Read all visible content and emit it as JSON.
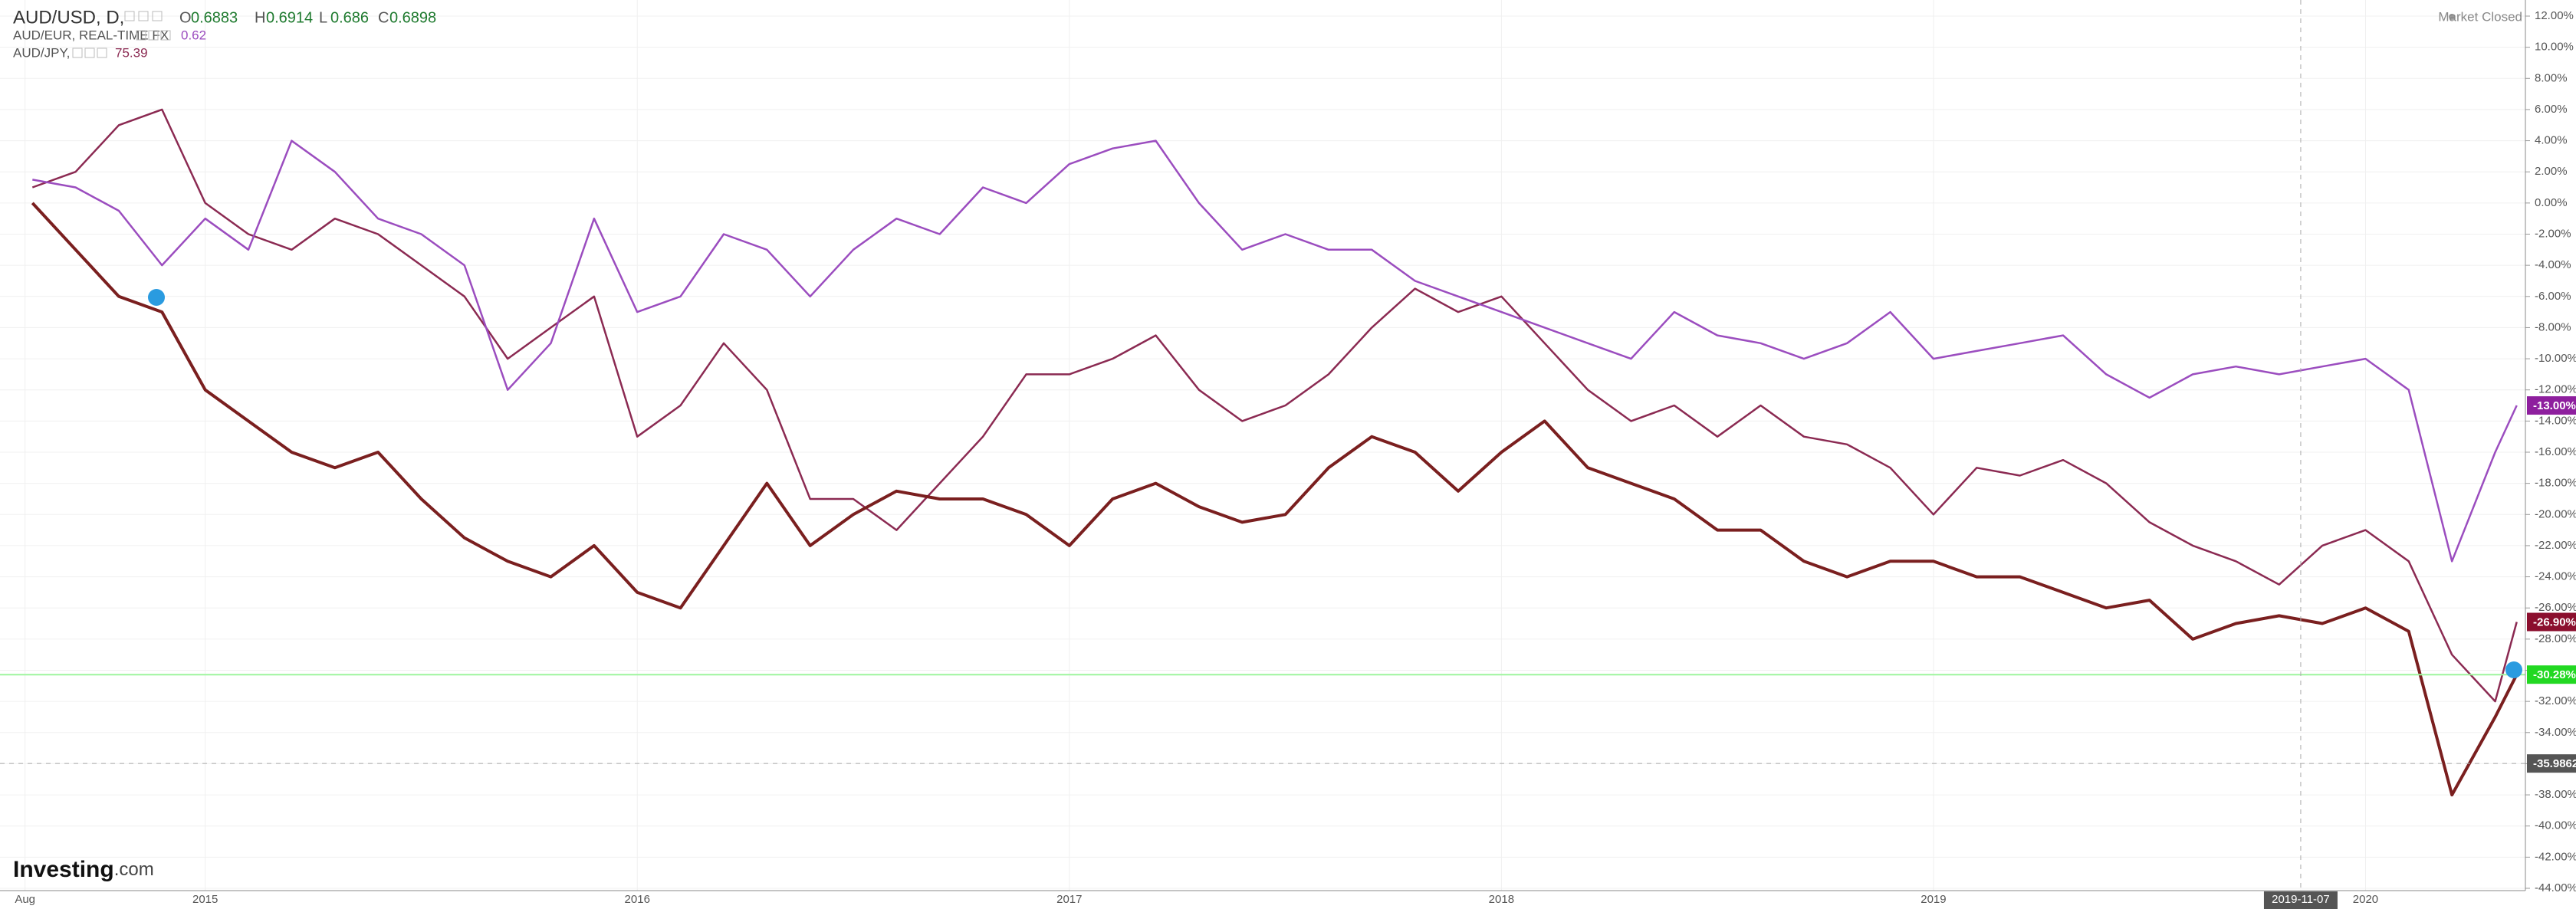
{
  "chart_data": {
    "type": "line",
    "x": [
      2014.6,
      2014.7,
      2014.8,
      2014.9,
      2015,
      2015.1,
      2015.2,
      2015.3,
      2015.4,
      2015.5,
      2015.6,
      2015.7,
      2015.8,
      2015.9,
      2016,
      2016.1,
      2016.2,
      2016.3,
      2016.4,
      2016.5,
      2016.6,
      2016.7,
      2016.8,
      2016.9,
      2017,
      2017.1,
      2017.2,
      2017.3,
      2017.4,
      2017.5,
      2017.6,
      2017.7,
      2017.8,
      2017.9,
      2018,
      2018.1,
      2018.2,
      2018.3,
      2018.4,
      2018.5,
      2018.6,
      2018.7,
      2018.8,
      2018.9,
      2019,
      2019.1,
      2019.2,
      2019.3,
      2019.4,
      2019.5,
      2019.6,
      2019.7,
      2019.8,
      2019.9,
      2020,
      2020.1,
      2020.2,
      2020.3,
      2020.35
    ],
    "series": [
      {
        "name": "AUD/USD, D,",
        "color": "#7a1f1f",
        "ohlc": [
          {
            "label": "O",
            "value": 0.6883
          },
          {
            "label": "H",
            "value": 0.6914
          },
          {
            "label": "L",
            "value": 0.686
          },
          {
            "label": "C",
            "value": 0.6898
          }
        ],
        "last_label": "-30.28%",
        "last_color": "#22d822",
        "values": [
          0,
          -3,
          -6,
          -7,
          -12,
          -14,
          -16,
          -17,
          -16,
          -19,
          -21.5,
          -23,
          -24,
          -22,
          -25,
          -26,
          -22,
          -18,
          -22,
          -20,
          -18.5,
          -19,
          -19,
          -20,
          -22,
          -19,
          -18,
          -19.5,
          -20.5,
          -20,
          -17,
          -15,
          -16,
          -18.5,
          -16,
          -14,
          -17,
          -18,
          -19,
          -21,
          -21,
          -23,
          -24,
          -23,
          -23,
          -24,
          -24,
          -25,
          -26,
          -25.5,
          -28,
          -27,
          -26.5,
          -27,
          -26,
          -27.5,
          -38,
          -33,
          -30.28
        ]
      },
      {
        "name": "AUD/EUR, REAL-TIME FX",
        "color": "#9b4dbf",
        "quote": 0.62,
        "last_label": "-13.00%",
        "last_color": "#8e1f9e",
        "values": [
          1.5,
          1,
          -0.5,
          -4,
          -1,
          -3,
          4,
          2,
          -1,
          -2,
          -4,
          -12,
          -9,
          -1,
          -7,
          -6,
          -2,
          -3,
          -6,
          -3,
          -1,
          -2,
          1,
          0,
          2.5,
          3.5,
          4,
          0,
          -3,
          -2,
          -3,
          -3,
          -5,
          -6,
          -7,
          -8,
          -9,
          -10,
          -7,
          -8.5,
          -9,
          -10,
          -9,
          -7,
          -10,
          -9.5,
          -9,
          -8.5,
          -11,
          -12.5,
          -11,
          -10.5,
          -11,
          -10.5,
          -10,
          -12,
          -23,
          -16,
          -13
        ]
      },
      {
        "name": "AUD/JPY,",
        "color": "#8b2a52",
        "quote": 75.39,
        "last_label": "-26.90%",
        "last_color": "#8b0f2e",
        "values": [
          1,
          2,
          5,
          6,
          0,
          -2,
          -3,
          -1,
          -2,
          -4,
          -6,
          -10,
          -8,
          -6,
          -15,
          -13,
          -9,
          -12,
          -19,
          -19,
          -21,
          -18,
          -15,
          -11,
          -11,
          -10,
          -8.5,
          -12,
          -14,
          -13,
          -11,
          -8,
          -5.5,
          -7,
          -6,
          -9,
          -12,
          -14,
          -13,
          -15,
          -13,
          -15,
          -15.5,
          -17,
          -20,
          -17,
          -17.5,
          -16.5,
          -18,
          -20.5,
          -22,
          -23,
          -24.5,
          -22,
          -21,
          -23,
          -29,
          -32,
          -26.9
        ]
      }
    ],
    "xlim": [
      2014.525,
      2020.37
    ],
    "xticks": [
      {
        "value": 2014.583,
        "label": "Aug"
      },
      2015,
      2016,
      2017,
      2018,
      2019,
      2020
    ],
    "ylim": [
      -44,
      12
    ],
    "yticks": [
      {
        "value": 12,
        "label": "12.00%"
      },
      {
        "value": 10,
        "label": "10.00%"
      },
      {
        "value": 8,
        "label": "8.00%"
      },
      {
        "value": 6,
        "label": "6.00%"
      },
      {
        "value": 4,
        "label": "4.00%"
      },
      {
        "value": 2,
        "label": "2.00%"
      },
      {
        "value": 0,
        "label": "0.00%"
      },
      {
        "value": -2,
        "label": "-2.00%"
      },
      {
        "value": -4,
        "label": "-4.00%"
      },
      {
        "value": -6,
        "label": "-6.00%"
      },
      {
        "value": -8,
        "label": "-8.00%"
      },
      {
        "value": -10,
        "label": "-10.00%"
      },
      {
        "value": -12,
        "label": "-12.00%"
      },
      {
        "value": -14,
        "label": "-14.00%"
      },
      {
        "value": -16,
        "label": "-16.00%"
      },
      {
        "value": -18,
        "label": "-18.00%"
      },
      {
        "value": -20,
        "label": "-20.00%"
      },
      {
        "value": -22,
        "label": "-22.00%"
      },
      {
        "value": -24,
        "label": "-24.00%"
      },
      {
        "value": -26,
        "label": "-26.00%"
      },
      {
        "value": -28,
        "label": "-28.00%"
      },
      {
        "value": -30,
        "label": "-30.00%"
      },
      {
        "value": -32,
        "label": "-32.00%"
      },
      {
        "value": -34,
        "label": "-34.00%"
      },
      {
        "value": -36,
        "label": "-36.00%"
      },
      {
        "value": -38,
        "label": "-38.00%"
      },
      {
        "value": -40,
        "label": "-40.00%"
      },
      {
        "value": -42,
        "label": "-42.00%"
      },
      {
        "value": -44,
        "label": "-44.00%"
      }
    ],
    "grid": true,
    "crosshair": {
      "x": {
        "value": 2019.85,
        "label": "2019-11-07"
      },
      "y": -35.9862
    },
    "status": "Market Closed",
    "brand": "Investing",
    "brand_suffix": ".com"
  }
}
